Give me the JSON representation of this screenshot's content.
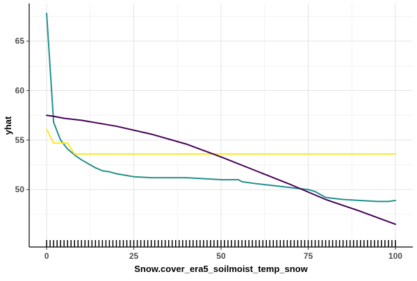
{
  "chart_data": {
    "type": "line",
    "xlabel": "Snow.cover_era5_soilmoist_temp_snow",
    "ylabel": "yhat",
    "xlim": [
      -5,
      105
    ],
    "ylim": [
      44.2,
      68.8
    ],
    "x_ticks": [
      0,
      25,
      50,
      75,
      100
    ],
    "x_tick_labels": [
      "0",
      "25",
      "50",
      "75",
      "100"
    ],
    "y_ticks": [
      50,
      55,
      60,
      65
    ],
    "y_tick_labels": [
      "50",
      "55",
      "60",
      "65"
    ],
    "grid": true,
    "legend": "none",
    "series": [
      {
        "color": "#21908c",
        "x": [
          0,
          2,
          4,
          6,
          8,
          10,
          12,
          14,
          16,
          18,
          20,
          25,
          30,
          35,
          40,
          45,
          50,
          55,
          56,
          60,
          65,
          70,
          75,
          77,
          80,
          85,
          90,
          95,
          98,
          100
        ],
        "y": [
          67.8,
          56.8,
          55.0,
          54.1,
          53.5,
          53.0,
          52.6,
          52.2,
          51.9,
          51.8,
          51.6,
          51.3,
          51.2,
          51.2,
          51.2,
          51.1,
          51.0,
          51.0,
          50.8,
          50.6,
          50.4,
          50.2,
          50.0,
          49.8,
          49.2,
          49.0,
          48.9,
          48.8,
          48.8,
          48.9
        ]
      },
      {
        "color": "#fde725",
        "x": [
          0,
          2,
          4,
          6,
          8,
          10,
          20,
          40,
          60,
          80,
          100
        ],
        "y": [
          56.1,
          54.7,
          54.7,
          54.7,
          53.6,
          53.6,
          53.6,
          53.6,
          53.6,
          53.6,
          53.6
        ]
      },
      {
        "color": "#440154",
        "x": [
          0,
          2,
          5,
          10,
          20,
          30,
          40,
          50,
          60,
          70,
          80,
          90,
          100
        ],
        "y": [
          57.5,
          57.4,
          57.2,
          57.0,
          56.4,
          55.6,
          54.6,
          53.3,
          51.9,
          50.5,
          49.0,
          47.8,
          46.5
        ]
      }
    ],
    "rug_x": [
      0,
      1,
      2,
      3,
      4,
      5,
      6,
      7,
      8,
      9,
      10,
      11,
      12,
      13,
      14,
      15,
      16,
      17,
      18,
      19,
      20,
      21,
      22,
      23,
      24,
      25,
      26,
      27,
      28,
      29,
      30,
      31,
      32,
      33,
      34,
      35,
      36,
      37,
      38,
      39,
      40,
      41,
      42,
      43,
      44,
      45,
      46,
      47,
      48,
      49,
      50,
      51,
      52,
      53,
      54,
      55,
      56,
      57,
      58,
      59,
      60,
      61,
      62,
      63,
      64,
      65,
      66,
      67,
      68,
      69,
      70,
      71,
      72,
      73,
      74,
      75,
      76,
      77,
      78,
      79,
      80,
      81,
      82,
      83,
      84,
      85,
      86,
      87,
      88,
      89,
      90,
      91,
      92,
      93,
      94,
      95,
      96,
      97,
      98,
      99,
      100
    ]
  }
}
